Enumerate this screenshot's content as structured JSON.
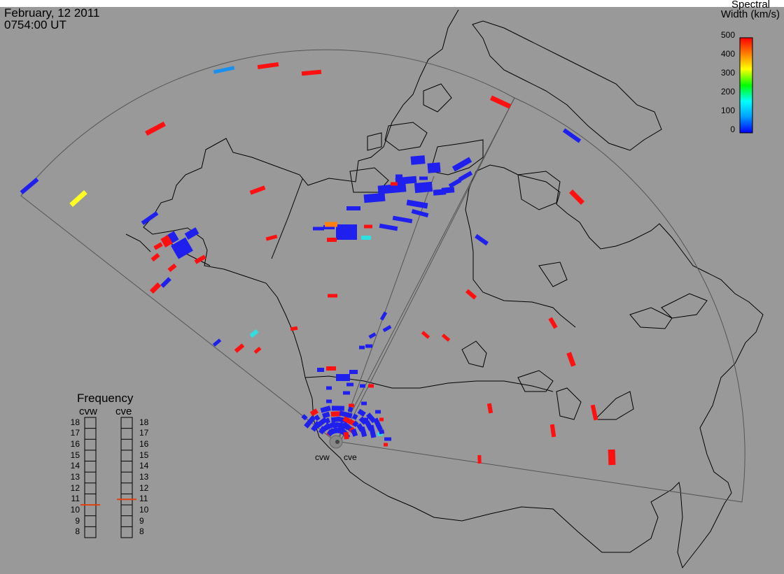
{
  "header": {
    "date": "February, 12 2011",
    "time": "0754:00 UT"
  },
  "colorbar": {
    "title_line1": "Spectral",
    "title_line2": "Width (km/s)",
    "ticks": [
      "500",
      "400",
      "300",
      "200",
      "100",
      "0"
    ],
    "range": [
      0,
      500
    ],
    "colors": [
      "#0000ff",
      "#00a0ff",
      "#00ffff",
      "#00ff00",
      "#ffff00",
      "#ff8000",
      "#ff0000"
    ]
  },
  "frequency": {
    "title": "Frequency",
    "radars": [
      {
        "name": "cvw",
        "value": 10.5
      },
      {
        "name": "cve",
        "value": 11
      }
    ],
    "ticks": [
      "18",
      "17",
      "16",
      "15",
      "14",
      "13",
      "12",
      "11",
      "10",
      "9",
      "8"
    ],
    "range": [
      8,
      18
    ]
  },
  "radar_sites": [
    "cvw",
    "cve"
  ],
  "palette": {
    "background": "#999999",
    "coast": "#000000",
    "fov": "#555555",
    "marker": "#e04010"
  }
}
